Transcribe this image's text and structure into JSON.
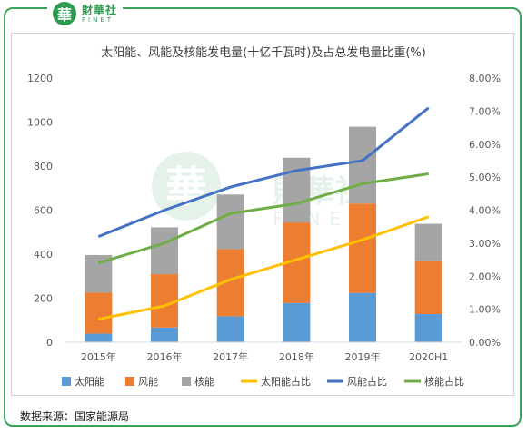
{
  "brand": {
    "logo_char": "華",
    "name": "財華社",
    "en": "FINET"
  },
  "source": "数据来源：国家能源局",
  "colors": {
    "solar": "#5b9bd5",
    "wind": "#ed7d31",
    "nuclear": "#a5a5a5",
    "solar_share": "#ffc000",
    "wind_share": "#4472c4",
    "nuclear_share": "#70ad47",
    "frame": "#3aa45a"
  },
  "chart_data": {
    "type": "bar",
    "stacked": true,
    "title": "太阳能、风能及核能发电量(十亿千瓦时)及占总发电量比重(%)",
    "categories": [
      "2015年",
      "2016年",
      "2017年",
      "2018年",
      "2019年",
      "2020H1"
    ],
    "ylim": [
      0,
      1200
    ],
    "yticks": [
      "0",
      "200",
      "400",
      "600",
      "800",
      "1000",
      "1200"
    ],
    "y2lim": [
      0,
      0.08
    ],
    "y2ticks": [
      "0.00%",
      "1.00%",
      "2.00%",
      "3.00%",
      "4.00%",
      "5.00%",
      "6.00%",
      "7.00%",
      "8.00%"
    ],
    "grid": false,
    "legend_position": "bottom",
    "series": [
      {
        "name": "太阳能",
        "type": "bar",
        "values": [
          39,
          67,
          118,
          178,
          224,
          128
        ]
      },
      {
        "name": "风能",
        "type": "bar",
        "values": [
          186,
          242,
          305,
          366,
          406,
          240
        ]
      },
      {
        "name": "核能",
        "type": "bar",
        "values": [
          171,
          213,
          248,
          294,
          349,
          170
        ]
      },
      {
        "name": "太阳能占比",
        "type": "line",
        "axis": "right",
        "values": [
          0.007,
          0.011,
          0.019,
          0.025,
          0.031,
          0.038
        ]
      },
      {
        "name": "风能占比",
        "type": "line",
        "axis": "right",
        "values": [
          0.032,
          0.04,
          0.047,
          0.052,
          0.055,
          0.071
        ]
      },
      {
        "name": "核能占比",
        "type": "line",
        "axis": "right",
        "values": [
          0.024,
          0.03,
          0.039,
          0.042,
          0.048,
          0.051
        ]
      }
    ]
  }
}
